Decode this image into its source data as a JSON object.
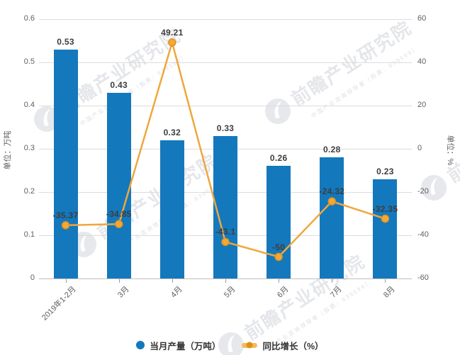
{
  "chart_data": {
    "type": "bar-line-combo",
    "categories": [
      "2019年1-2月",
      "3月",
      "4月",
      "5月",
      "6月",
      "7月",
      "8月"
    ],
    "series": [
      {
        "name": "当月产量（万吨）",
        "type": "bar",
        "axis": "left",
        "values": [
          0.53,
          0.43,
          0.32,
          0.33,
          0.26,
          0.28,
          0.23
        ],
        "labels": [
          "0.53",
          "0.43",
          "0.32",
          "0.33",
          "0.26",
          "0.28",
          "0.23"
        ],
        "color": "#1478bd"
      },
      {
        "name": "同比增长（%）",
        "type": "line",
        "axis": "right",
        "values": [
          -35.37,
          -34.85,
          49.21,
          -43.1,
          -50,
          -24.32,
          -32.35
        ],
        "labels": [
          "-35.37",
          "-34.85",
          "49.21",
          "-43.1",
          "-50",
          "-24.32",
          "-32.35"
        ],
        "color": "#efa73c",
        "marker_fill": "#f2a93a",
        "marker_border": "#e0931c"
      }
    ],
    "left_axis": {
      "title": "单位：万吨",
      "min": 0,
      "max": 0.6,
      "tick_labels": [
        "0.6",
        "0.5",
        "0.4",
        "0.3",
        "0.2",
        "0.1",
        "0"
      ]
    },
    "right_axis": {
      "title": "单位：%",
      "min": -60,
      "max": 60,
      "tick_labels": [
        "60",
        "40",
        "20",
        "0",
        "-20",
        "-40",
        "-60"
      ]
    },
    "grid": true,
    "legend_position": "bottom"
  },
  "legend": {
    "items": [
      {
        "label": "当月产量（万吨）",
        "marker": "circle",
        "color": "#1478bd"
      },
      {
        "label": "同比增长（%）",
        "marker": "line-dot",
        "color": "#efa73c",
        "dot_color": "#dd9018",
        "pill_color": "#f3b95c"
      }
    ]
  },
  "watermark": {
    "title": "前瞻产业研究院",
    "subtitle": "中国产业咨询领导者（股票：839599）"
  },
  "colors": {
    "bar": "#1478bd",
    "line": "#efa73c",
    "line_marker_border": "#e0931c",
    "value_label": "#3d3d3d",
    "axis_text": "#5e5e5e",
    "gridline": "#dcdcdc",
    "axis_line": "#bfbfbf",
    "watermark": "#aeb3c1"
  }
}
